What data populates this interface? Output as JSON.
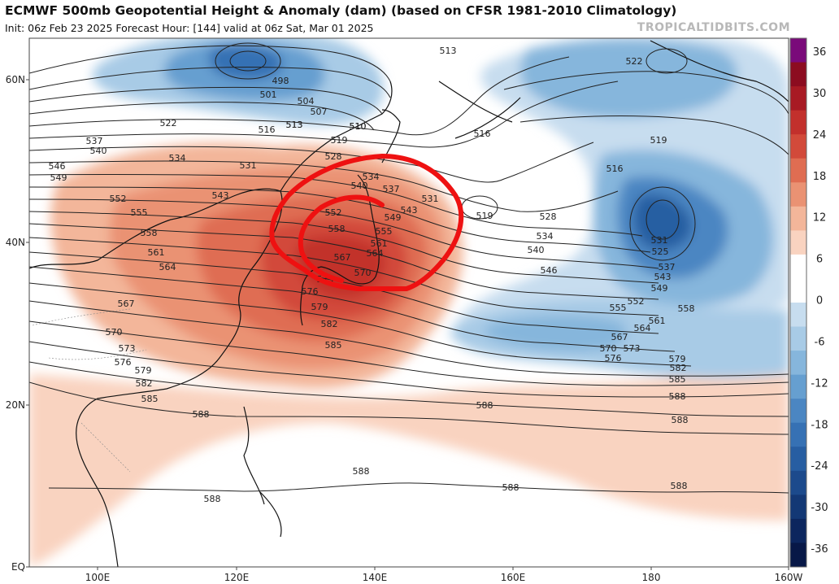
{
  "header": {
    "title": "ECMWF 500mb Geopotential Height & Anomaly (dam) (based on CFSR 1981-2010 Climatology)",
    "subtitle": "Init: 06z Feb 23 2025   Forecast Hour: [144]   valid at 06z Sat, Mar 01 2025",
    "watermark": "TROPICALTIDBITS.COM"
  },
  "axes": {
    "lat_labels": [
      "60N",
      "40N",
      "20N",
      "EQ"
    ],
    "lon_labels": [
      "100E",
      "120E",
      "140E",
      "160E",
      "180",
      "160W"
    ]
  },
  "colorbar": {
    "ticks": [
      "36",
      "30",
      "24",
      "18",
      "12",
      "6",
      "0",
      "-6",
      "-12",
      "-18",
      "-24",
      "-30",
      "-36"
    ],
    "colors": [
      "#7a0a7a",
      "#8c0c20",
      "#a81a24",
      "#c2302c",
      "#d24a3a",
      "#df6d52",
      "#ea9273",
      "#f3b69a",
      "#f9d3c0",
      "#ffffff",
      "#ffffff",
      "#c7ddef",
      "#a8cbe6",
      "#86b6dc",
      "#669fd0",
      "#4b86c2",
      "#3671b4",
      "#275ea2",
      "#1c4a8c",
      "#133875",
      "#0c265e",
      "#071847"
    ]
  },
  "contours": {
    "labels": [
      {
        "text": "498"
      },
      {
        "text": "501"
      },
      {
        "text": "504"
      },
      {
        "text": "507"
      },
      {
        "text": "510"
      },
      {
        "text": "513"
      },
      {
        "text": "516"
      },
      {
        "text": "519"
      },
      {
        "text": "522"
      },
      {
        "text": "528"
      },
      {
        "text": "531"
      },
      {
        "text": "534"
      },
      {
        "text": "537"
      },
      {
        "text": "540"
      },
      {
        "text": "543"
      },
      {
        "text": "546"
      },
      {
        "text": "549"
      },
      {
        "text": "552"
      },
      {
        "text": "555"
      },
      {
        "text": "558"
      },
      {
        "text": "561"
      },
      {
        "text": "564"
      },
      {
        "text": "567"
      },
      {
        "text": "570"
      },
      {
        "text": "573"
      },
      {
        "text": "576"
      },
      {
        "text": "579"
      },
      {
        "text": "582"
      },
      {
        "text": "585"
      },
      {
        "text": "588"
      },
      {
        "text": "534"
      },
      {
        "text": "537"
      },
      {
        "text": "540"
      },
      {
        "text": "549"
      },
      {
        "text": "552"
      },
      {
        "text": "555"
      },
      {
        "text": "558"
      },
      {
        "text": "561"
      },
      {
        "text": "564"
      },
      {
        "text": "567"
      },
      {
        "text": "570"
      },
      {
        "text": "573"
      },
      {
        "text": "576"
      },
      {
        "text": "579"
      },
      {
        "text": "582"
      },
      {
        "text": "585"
      },
      {
        "text": "588"
      },
      {
        "text": "513"
      },
      {
        "text": "510"
      },
      {
        "text": "513"
      },
      {
        "text": "516"
      },
      {
        "text": "519"
      },
      {
        "text": "528"
      },
      {
        "text": "531"
      },
      {
        "text": "534"
      },
      {
        "text": "540"
      },
      {
        "text": "543"
      },
      {
        "text": "546"
      },
      {
        "text": "516"
      },
      {
        "text": "519"
      },
      {
        "text": "522"
      },
      {
        "text": "525"
      },
      {
        "text": "531"
      },
      {
        "text": "537"
      },
      {
        "text": "543"
      },
      {
        "text": "549"
      },
      {
        "text": "552"
      },
      {
        "text": "555"
      },
      {
        "text": "558"
      },
      {
        "text": "561"
      },
      {
        "text": "564"
      },
      {
        "text": "567"
      },
      {
        "text": "570"
      },
      {
        "text": "573"
      },
      {
        "text": "576"
      },
      {
        "text": "579"
      },
      {
        "text": "582"
      },
      {
        "text": "585"
      },
      {
        "text": "588"
      },
      {
        "text": "588"
      },
      {
        "text": "588"
      },
      {
        "text": "588"
      },
      {
        "text": "588"
      },
      {
        "text": "588"
      }
    ]
  },
  "annotation": {
    "description": "hand-drawn red ring",
    "color": "#ee1111"
  }
}
